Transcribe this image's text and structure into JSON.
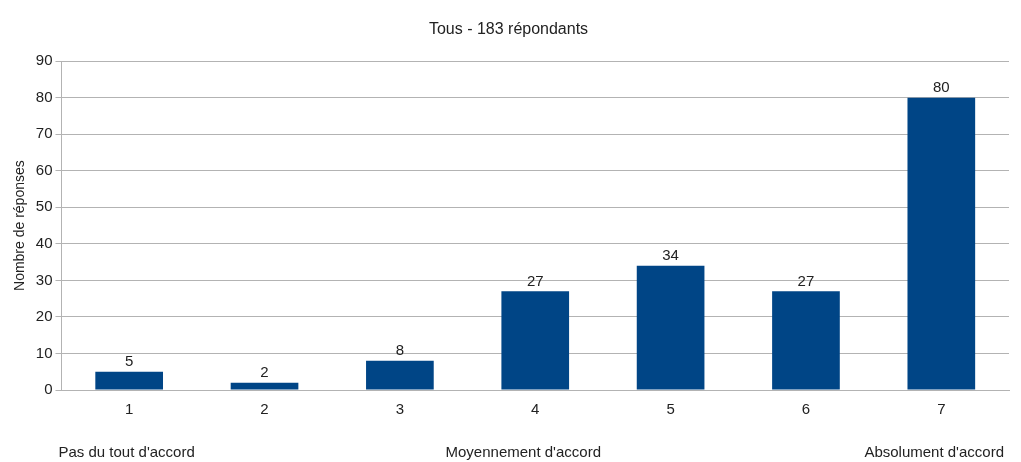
{
  "chart_data": {
    "type": "bar",
    "title": "Tous - 183 répondants",
    "ylabel": "Nombre de réponses",
    "categories": [
      "1",
      "2",
      "3",
      "4",
      "5",
      "6",
      "7"
    ],
    "values": [
      5,
      2,
      8,
      27,
      34,
      27,
      80
    ],
    "color": "#004586",
    "ylim": [
      0,
      90
    ],
    "yticks": [
      0,
      10,
      20,
      30,
      40,
      50,
      60,
      70,
      80,
      90
    ],
    "grid": "y",
    "legend": false,
    "data_labels": true,
    "annotations": [
      "Pas du tout d'accord",
      "Moyennement d'accord",
      "Absolument d'accord"
    ]
  }
}
